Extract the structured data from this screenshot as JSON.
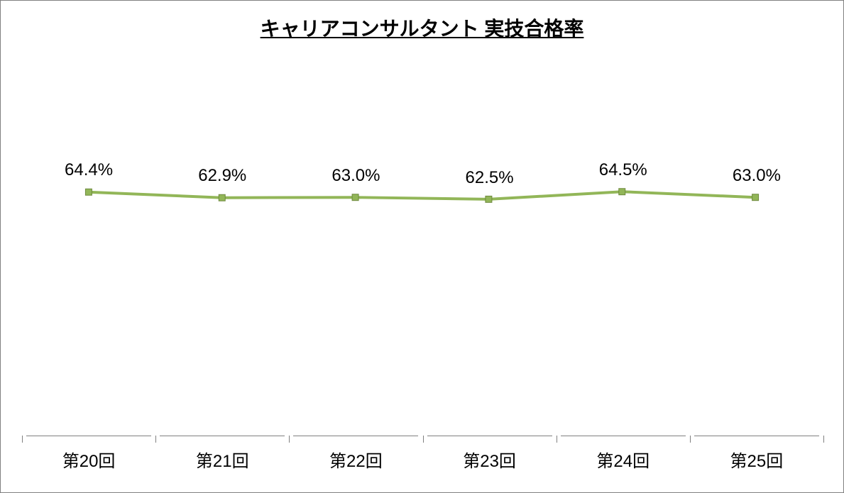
{
  "chart": {
    "type": "line",
    "title": "キャリアコンサルタント  実技合格率",
    "title_fontsize": 28,
    "title_color": "#000000",
    "title_bold": true,
    "title_underline": true,
    "background_color": "#ffffff",
    "border_color": "#808080",
    "categories": [
      "第20回",
      "第21回",
      "第22回",
      "第23回",
      "第24回",
      "第25回"
    ],
    "values": [
      64.4,
      62.9,
      63.0,
      62.5,
      64.5,
      63.0
    ],
    "data_labels": [
      "64.4%",
      "62.9%",
      "63.0%",
      "62.5%",
      "64.5%",
      "63.0%"
    ],
    "line_color": "#92b658",
    "line_width": 4,
    "marker_style": "square",
    "marker_size": 9,
    "marker_color": "#92b658",
    "marker_border": "#6e8a3e",
    "ylim": [
      0,
      100
    ],
    "data_label_fontsize": 24,
    "data_label_color": "#000000",
    "x_label_fontsize": 24,
    "x_label_color": "#000000",
    "x_axis_color": "#808080",
    "tick_mark_length": 10
  }
}
